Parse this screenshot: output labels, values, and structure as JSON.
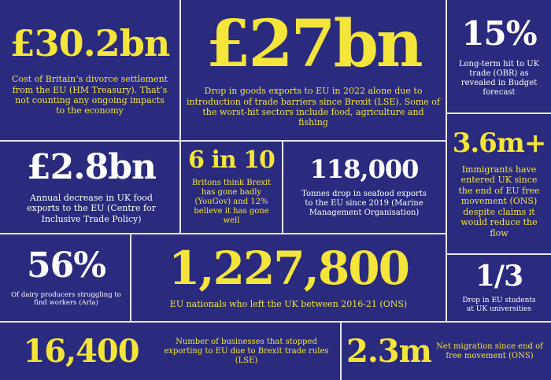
{
  "colors": {
    "background": "#2a2a7e",
    "yellow": "#f4e53a",
    "white": "#ffffff"
  },
  "stats": {
    "divorce": {
      "value": "£30.2bn",
      "caption": "Cost of Britain’s divorce settlement from the EU (HM Treasury). That’s not counting any ongoing impacts to the economy"
    },
    "goods": {
      "value": "£27bn",
      "caption": "Drop in goods exports to EU in 2022 alone due to introduction of trade barriers since Brexit (LSE). Some of the worst-hit sectors include food, agriculture and fishing"
    },
    "trade_hit": {
      "value": "15%",
      "caption": "Long-term hit to UK trade (OBR) as revealed in Budget forecast"
    },
    "food": {
      "value": "£2.8bn",
      "caption": "Annual decrease in UK food exports to the EU (Centre for Inclusive Trade Policy)"
    },
    "britons": {
      "value": "6 in 10",
      "caption": "Britons think Brexit has gone badly (YouGov) and 12% believe it has gone well"
    },
    "seafood": {
      "value": "118,000",
      "caption": "Tonnes drop in seafood exports to the EU since 2019 (Marine Management Organisation)"
    },
    "immigrants": {
      "value": "3.6m+",
      "caption": "Immigrants have entered UK since the end of EU free movement (ONS) despite claims it would reduce the flow"
    },
    "dairy": {
      "value": "56%",
      "caption": "Of dairy producers struggling to find workers (Arla)"
    },
    "eu_nationals": {
      "value": "1,227,800",
      "caption": "EU nationals who left the UK between 2016-21 (ONS)"
    },
    "students": {
      "value": "1/3",
      "caption": "Drop in EU students at UK universities"
    },
    "businesses": {
      "value": "16,400",
      "caption": "Number of businesses that stopped exporting to EU due to Brexit trade rules (LSE)"
    },
    "net_migration": {
      "value": "2.3m",
      "caption": "Net migration since end of free movement (ONS)"
    }
  }
}
